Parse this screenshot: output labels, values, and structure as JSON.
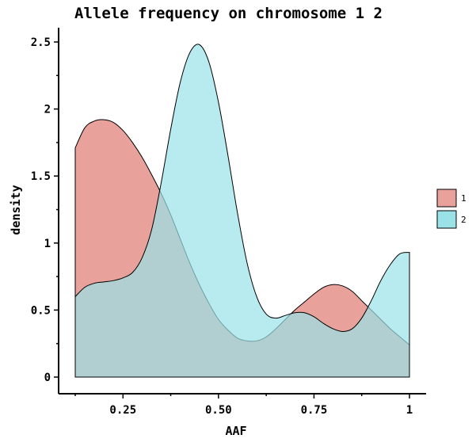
{
  "chart_data": {
    "type": "area",
    "title": "Allele frequency on chromosome 1 2",
    "xlabel": "AAF",
    "ylabel": "density",
    "xlim": [
      0.125,
      1.0
    ],
    "ylim": [
      0,
      2.5
    ],
    "x_ticks": [
      0.25,
      0.5,
      0.75,
      1.0
    ],
    "x_tick_labels": [
      "0.25",
      "0.50",
      "0.75",
      "1"
    ],
    "y_ticks": [
      0,
      0.5,
      1,
      1.5,
      2,
      2.5
    ],
    "y_tick_labels": [
      "0",
      "0.5",
      "1",
      "1.5",
      "2",
      "2.5"
    ],
    "legend_position": "right",
    "grid": false,
    "series": [
      {
        "name": "1",
        "color": "#E8A29B",
        "x": [
          0.125,
          0.15,
          0.175,
          0.2,
          0.225,
          0.25,
          0.275,
          0.3,
          0.325,
          0.35,
          0.375,
          0.4,
          0.425,
          0.45,
          0.475,
          0.5,
          0.525,
          0.55,
          0.575,
          0.6,
          0.625,
          0.65,
          0.675,
          0.7,
          0.725,
          0.75,
          0.775,
          0.8,
          0.825,
          0.85,
          0.875,
          0.9,
          0.925,
          0.95,
          0.975,
          1.0
        ],
        "values": [
          1.71,
          1.86,
          1.91,
          1.92,
          1.9,
          1.84,
          1.75,
          1.64,
          1.51,
          1.37,
          1.21,
          1.03,
          0.85,
          0.69,
          0.55,
          0.43,
          0.35,
          0.29,
          0.27,
          0.27,
          0.3,
          0.36,
          0.43,
          0.5,
          0.56,
          0.62,
          0.67,
          0.69,
          0.68,
          0.64,
          0.57,
          0.5,
          0.43,
          0.36,
          0.3,
          0.24
        ]
      },
      {
        "name": "2",
        "color": "#9AE2E8",
        "x": [
          0.125,
          0.15,
          0.175,
          0.2,
          0.225,
          0.25,
          0.275,
          0.3,
          0.325,
          0.35,
          0.375,
          0.4,
          0.425,
          0.45,
          0.475,
          0.5,
          0.525,
          0.55,
          0.575,
          0.6,
          0.625,
          0.65,
          0.675,
          0.7,
          0.725,
          0.75,
          0.775,
          0.8,
          0.825,
          0.85,
          0.875,
          0.9,
          0.925,
          0.95,
          0.975,
          1.0
        ],
        "values": [
          0.6,
          0.67,
          0.7,
          0.71,
          0.72,
          0.74,
          0.78,
          0.89,
          1.1,
          1.45,
          1.85,
          2.2,
          2.42,
          2.48,
          2.35,
          2.05,
          1.65,
          1.22,
          0.85,
          0.6,
          0.47,
          0.44,
          0.46,
          0.48,
          0.48,
          0.45,
          0.4,
          0.36,
          0.34,
          0.36,
          0.44,
          0.57,
          0.72,
          0.84,
          0.92,
          0.93
        ]
      }
    ]
  }
}
